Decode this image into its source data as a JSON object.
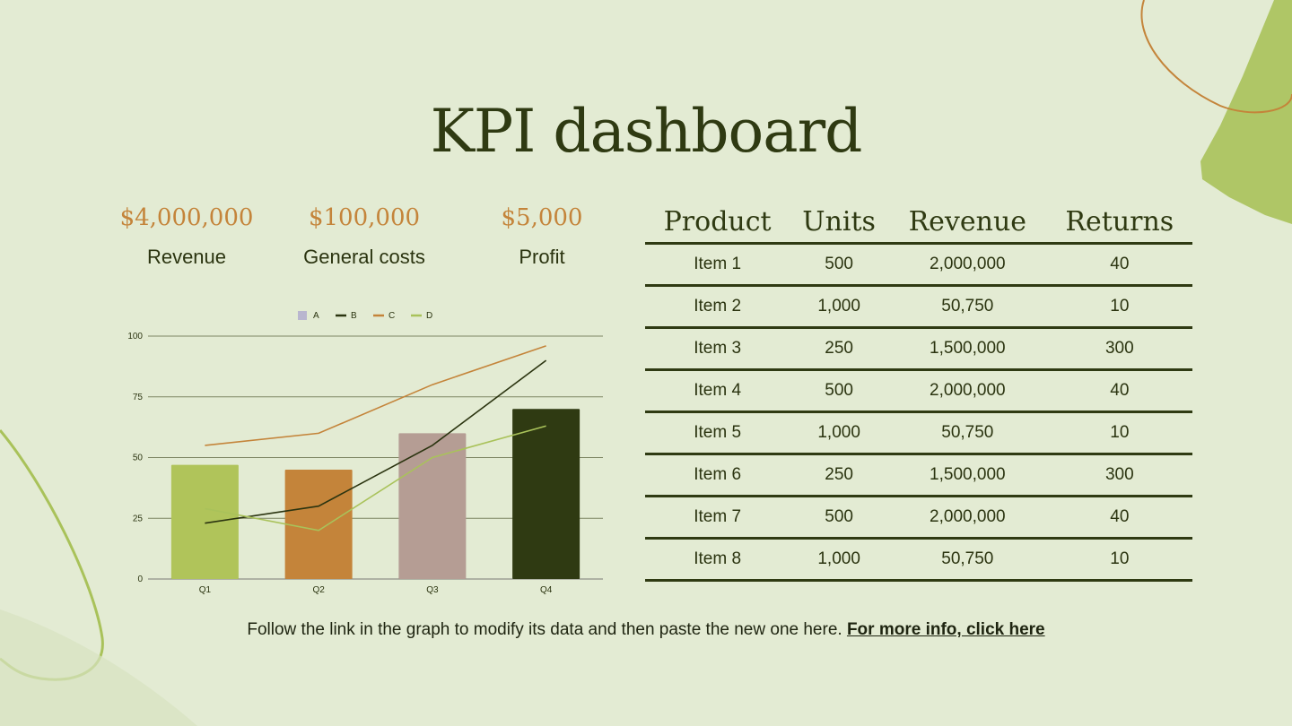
{
  "title": "KPI dashboard",
  "kpis": [
    {
      "value": "$4,000,000",
      "label": "Revenue"
    },
    {
      "value": "$100,000",
      "label": "General costs"
    },
    {
      "value": "$5,000",
      "label": "Profit"
    }
  ],
  "table": {
    "headers": [
      "Product",
      "Units",
      "Revenue",
      "Returns"
    ],
    "rows": [
      [
        "Item 1",
        "500",
        "2,000,000",
        "40"
      ],
      [
        "Item 2",
        "1,000",
        "50,750",
        "10"
      ],
      [
        "Item 3",
        "250",
        "1,500,000",
        "300"
      ],
      [
        "Item 4",
        "500",
        "2,000,000",
        "40"
      ],
      [
        "Item 5",
        "1,000",
        "50,750",
        "10"
      ],
      [
        "Item 6",
        "250",
        "1,500,000",
        "300"
      ],
      [
        "Item 7",
        "500",
        "2,000,000",
        "40"
      ],
      [
        "Item 8",
        "1,000",
        "50,750",
        "10"
      ]
    ]
  },
  "footer": {
    "text": "Follow the link in the graph to modify its data and then paste the new one here.",
    "link": "For more info, click here"
  },
  "colors": {
    "accent_dark": "#2f3a12",
    "accent_orange": "#c4843a",
    "accent_green": "#b0c45a",
    "mauve": "#b59d94",
    "background": "#e3ebd3"
  },
  "chart_data": {
    "type": "bar",
    "categories": [
      "Q1",
      "Q2",
      "Q3",
      "Q4"
    ],
    "ylim": [
      0,
      100
    ],
    "yticks": [
      0,
      25,
      50,
      75,
      100
    ],
    "grid": true,
    "legend_position": "top-center",
    "bar_colors": [
      "#b0c45a",
      "#c4843a",
      "#b59d94",
      "#2f3a12"
    ],
    "series": [
      {
        "name": "A",
        "type": "bar",
        "values": [
          47,
          45,
          60,
          70
        ],
        "color": "#b9b6cf"
      },
      {
        "name": "B",
        "type": "line",
        "values": [
          23,
          30,
          55,
          90
        ],
        "color": "#2b3410"
      },
      {
        "name": "C",
        "type": "line",
        "values": [
          55,
          60,
          80,
          96
        ],
        "color": "#c4843a"
      },
      {
        "name": "D",
        "type": "line",
        "values": [
          29,
          20,
          50,
          63
        ],
        "color": "#a9c25a"
      }
    ]
  }
}
